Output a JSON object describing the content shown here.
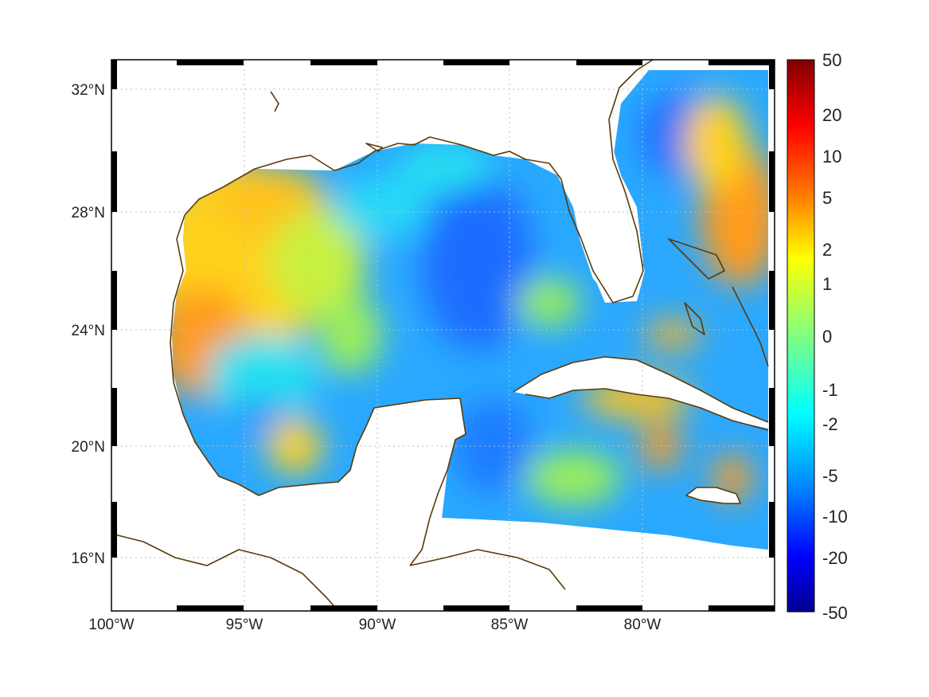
{
  "map": {
    "lat_labels": [
      "32°N",
      "28°N",
      "24°N",
      "20°N",
      "16°N"
    ],
    "lon_labels": [
      "100°W",
      "95°W",
      "90°W",
      "85°W",
      "80°W"
    ]
  },
  "colorbar": {
    "labels": [
      "50",
      "20",
      "10",
      "5",
      "2",
      "1",
      "0",
      "-1",
      "-2",
      "-5",
      "-10",
      "-20",
      "-50"
    ],
    "colors": [
      "#7f0000",
      "#ff0000",
      "#ff8000",
      "#ffff00",
      "#80ff80",
      "#00ffff",
      "#0080ff",
      "#0000ff",
      "#00008f"
    ]
  },
  "field_colors": {
    "ocean_base": "#2aa8ff",
    "deep_blue": "#1a6dff",
    "warm_orange": "#ff9b1a",
    "yellow": "#ffd21a",
    "cyan": "#28e0f0",
    "green": "#9aee5a",
    "coast": "#5a3a0a"
  }
}
